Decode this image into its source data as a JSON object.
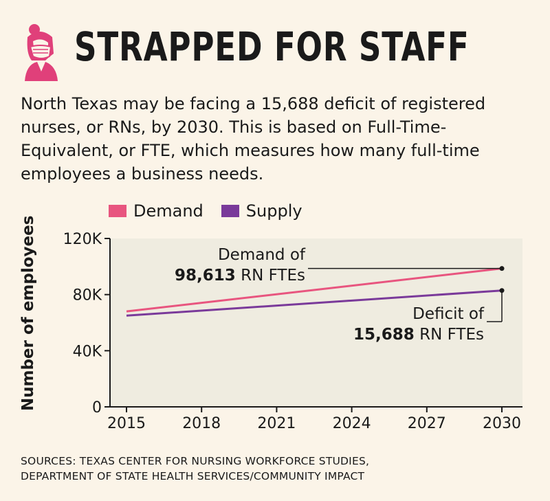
{
  "header": {
    "title": "STRAPPED FOR STAFF",
    "icon": "nurse-icon",
    "accent_color": "#e0407a"
  },
  "intro": "North Texas may be facing a 15,688 deficit of registered nurses, or RNs, by 2030. This is based on Full-Time-Equivalent, or FTE, which measures how many full-time employees a business needs.",
  "chart_data": {
    "type": "line",
    "x": [
      2015,
      2030
    ],
    "series": [
      {
        "name": "Demand",
        "color": "#e8557f",
        "values": [
          68000,
          98613
        ]
      },
      {
        "name": "Supply",
        "color": "#7a3a9a",
        "values": [
          65000,
          82925
        ]
      }
    ],
    "xticks": [
      "2015",
      "2018",
      "2021",
      "2024",
      "2027",
      "2030"
    ],
    "yticks": [
      "0",
      "40K",
      "80K",
      "120K"
    ],
    "ylim": [
      0,
      120000
    ],
    "xlim": [
      2015,
      2030
    ],
    "ylabel": "Number of employees",
    "legend_position": "top-left",
    "plot_background": "#efece0",
    "annotations": {
      "demand_prefix": "Demand of",
      "demand_value": "98,613",
      "demand_suffix": " RN FTEs",
      "deficit_prefix": "Deficit of",
      "deficit_value": "15,688",
      "deficit_suffix": " RN FTEs"
    }
  },
  "sources": {
    "line1": "SOURCES: TEXAS CENTER FOR NURSING WORKFORCE STUDIES,",
    "line2": "DEPARTMENT OF STATE HEALTH SERVICES/COMMUNITY IMPACT"
  }
}
